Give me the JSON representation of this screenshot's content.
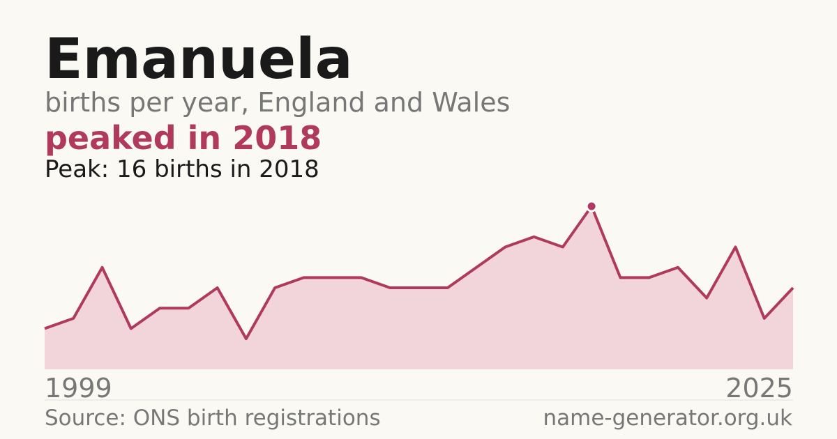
{
  "chart_data": {
    "type": "area",
    "title": "Emanuela",
    "subtitle": "births per year, England and Wales",
    "annotation": "peaked in 2018",
    "peak_note": "Peak: 16 births in 2018",
    "source": "Source: ONS birth registrations",
    "website": "name-generator.org.uk",
    "x": [
      1999,
      2000,
      2001,
      2002,
      2003,
      2004,
      2005,
      2006,
      2007,
      2008,
      2009,
      2010,
      2011,
      2012,
      2013,
      2014,
      2015,
      2016,
      2017,
      2018,
      2019,
      2020,
      2021,
      2022,
      2023,
      2024,
      2025
    ],
    "values": [
      4,
      5,
      10,
      4,
      6,
      6,
      8,
      3,
      8,
      9,
      9,
      9,
      8,
      8,
      8,
      10,
      12,
      13,
      12,
      16,
      9,
      9,
      10,
      7,
      12,
      5,
      8
    ],
    "color": "#b03a5b",
    "fill_color": "#f2d5db",
    "xlim": [
      1999,
      2025
    ],
    "xticks": [
      1999,
      2025
    ],
    "ylim": [
      0,
      16
    ],
    "highlight_index": 19
  }
}
